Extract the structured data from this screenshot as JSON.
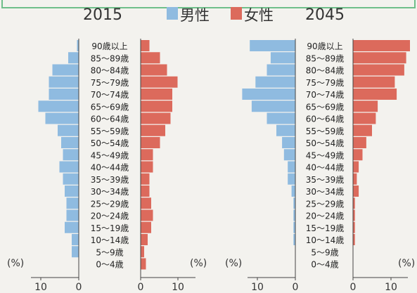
{
  "header": {
    "legend_male": "男性",
    "legend_female": "女性"
  },
  "colors": {
    "male": "#8fbbe0",
    "female": "#dc6a5c",
    "header_border": "#6fbf8a",
    "axis": "#444444"
  },
  "chart_data": [
    {
      "type": "bar",
      "title": "2015",
      "orientation": "horizontal-pyramid",
      "categories": [
        "90歳以上",
        "85～89歳",
        "80～84歳",
        "75～79歳",
        "70～74歳",
        "65～69歳",
        "60～64歳",
        "55～59歳",
        "50～54歳",
        "45～49歳",
        "40～44歳",
        "35～39歳",
        "30～34歳",
        "25～29歳",
        "20～24歳",
        "15～19歳",
        "10～14歳",
        "5～9歳",
        "0～4歳"
      ],
      "series": [
        {
          "name": "男性",
          "values": [
            0.5,
            3.0,
            7.5,
            8.5,
            8.5,
            11.5,
            9.5,
            6.0,
            5.0,
            4.5,
            5.5,
            4.5,
            4.0,
            3.5,
            3.5,
            4.0,
            2.0,
            2.0,
            0.0
          ]
        },
        {
          "name": "女性",
          "values": [
            2.5,
            5.5,
            7.5,
            10.5,
            9.0,
            9.0,
            8.5,
            7.0,
            5.5,
            3.5,
            3.5,
            2.5,
            2.5,
            3.0,
            3.5,
            3.0,
            2.0,
            1.0,
            1.5
          ]
        }
      ],
      "xlabel": "(%)",
      "xticks_left": [
        "10",
        "0"
      ],
      "xticks_right": [
        "0",
        "10"
      ],
      "xlim": [
        0,
        13
      ]
    },
    {
      "type": "bar",
      "title": "2045",
      "orientation": "horizontal-pyramid",
      "categories": [
        "90歳以上",
        "85～89歳",
        "80～84歳",
        "75～79歳",
        "70～74歳",
        "65～69歳",
        "60～64歳",
        "55～59歳",
        "50～54歳",
        "45～49歳",
        "40～44歳",
        "35～39歳",
        "30～34歳",
        "25～29歳",
        "20～24歳",
        "15～19歳",
        "10～14歳",
        "5～9歳",
        "0～4歳"
      ],
      "series": [
        {
          "name": "男性",
          "values": [
            12.0,
            6.5,
            7.5,
            10.5,
            14.0,
            11.5,
            7.5,
            5.0,
            3.5,
            3.0,
            2.0,
            2.0,
            1.0,
            0.5,
            0.5,
            0.5,
            0.5,
            0.0,
            0.0
          ]
        },
        {
          "name": "女性",
          "values": [
            15.0,
            14.0,
            13.5,
            11.0,
            11.5,
            6.5,
            6.0,
            5.0,
            3.5,
            2.5,
            1.5,
            1.0,
            1.5,
            0.5,
            0.5,
            0.5,
            0.5,
            0.0,
            0.0
          ]
        }
      ],
      "xlabel": "(%)",
      "xticks_left": [
        "10",
        "0"
      ],
      "xticks_right": [
        "0",
        "10"
      ],
      "xlim": [
        0,
        13
      ]
    }
  ]
}
